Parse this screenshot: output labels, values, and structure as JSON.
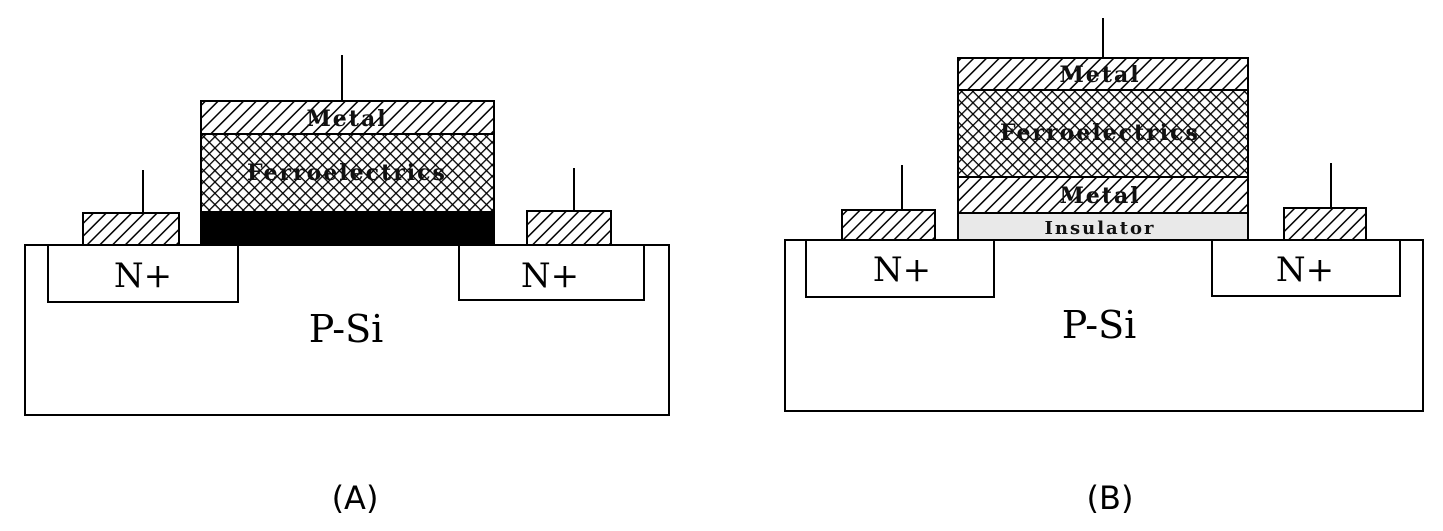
{
  "diagrams": [
    {
      "id": "A",
      "caption": "(A)",
      "substrate_label": "P-Si",
      "left_region_label": "N+",
      "right_region_label": "N+",
      "gate_layers": [
        "Metal",
        "Ferroelectrics"
      ]
    },
    {
      "id": "B",
      "caption": "(B)",
      "substrate_label": "P-Si",
      "left_region_label": "N+",
      "right_region_label": "N+",
      "gate_layers": [
        "Metal",
        "Ferroelectrics",
        "Metal",
        "Insulator"
      ]
    }
  ],
  "colors": {
    "hatch": "#000000",
    "buffer_layer": "#000000",
    "background": "#ffffff",
    "stroke": "#000000"
  }
}
